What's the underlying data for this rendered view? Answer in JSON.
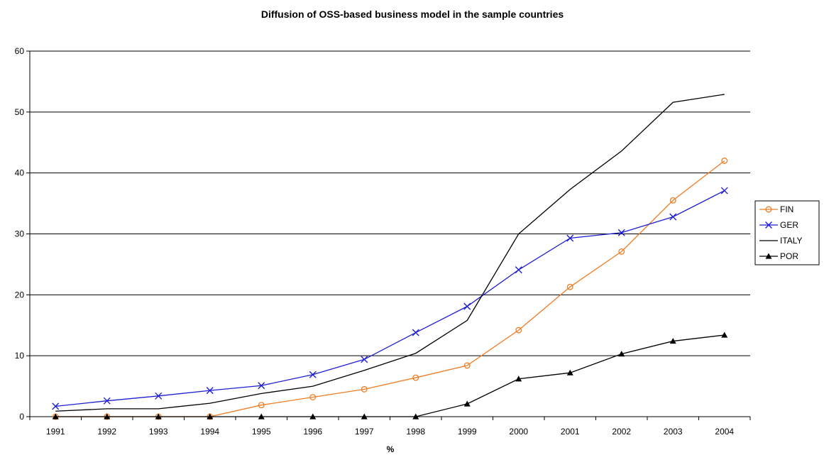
{
  "chart_data": {
    "type": "line",
    "title": "Diffusion of OSS-based business model in the sample countries",
    "xlabel": "%",
    "ylabel": "",
    "categories": [
      "1991",
      "1992",
      "1993",
      "1994",
      "1995",
      "1996",
      "1997",
      "1998",
      "1999",
      "2000",
      "2001",
      "2002",
      "2003",
      "2004"
    ],
    "ylim": [
      0,
      60
    ],
    "yticks": [
      0,
      10,
      20,
      30,
      40,
      50,
      60
    ],
    "grid": "horizontal",
    "legend_position": "right",
    "series": [
      {
        "name": "FIN",
        "color": "#f07c24",
        "marker": "circle",
        "values": [
          0,
          0,
          0,
          0,
          1.9,
          3.2,
          4.5,
          6.4,
          8.4,
          14.2,
          21.3,
          27.1,
          35.5,
          42.0
        ]
      },
      {
        "name": "GER",
        "color": "#1f1fd1",
        "marker": "x",
        "values": [
          1.7,
          2.6,
          3.4,
          4.3,
          5.1,
          6.9,
          9.4,
          13.8,
          18.1,
          24.1,
          29.3,
          30.2,
          32.8,
          37.1
        ]
      },
      {
        "name": "ITALY",
        "color": "#000000",
        "marker": "none",
        "values": [
          0.9,
          1.3,
          1.3,
          2.2,
          3.8,
          5.0,
          7.6,
          10.4,
          15.8,
          30.0,
          37.3,
          43.6,
          51.6,
          52.9
        ]
      },
      {
        "name": "POR",
        "color": "#000000",
        "marker": "triangle",
        "values": [
          0,
          0,
          0,
          0,
          0,
          0,
          0,
          0,
          2.1,
          6.2,
          7.2,
          10.3,
          12.4,
          13.4
        ]
      }
    ]
  }
}
